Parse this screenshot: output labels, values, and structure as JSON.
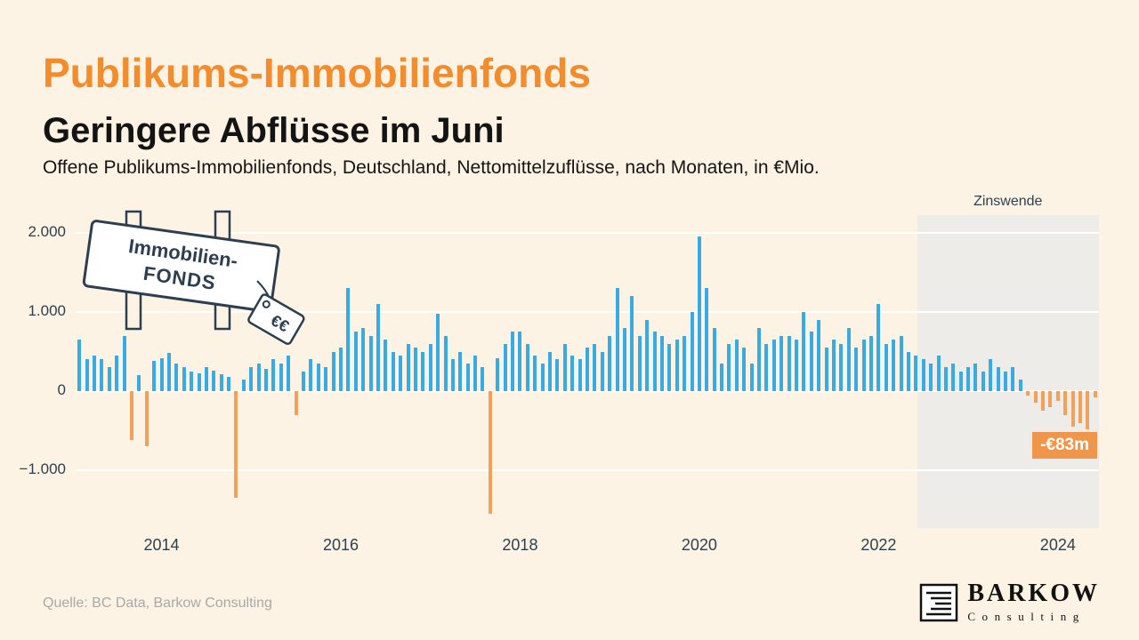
{
  "header": {
    "title": "Publikums-Immobilienfonds",
    "subtitle": "Geringere Abflüsse im Juni",
    "description": "Offene Publikums-Immobilienfonds, Deutschland, Nettomittelzuflüsse, nach Monaten, in €Mio."
  },
  "sign": {
    "line1": "Immobilien-",
    "line2": "FONDS",
    "tag": "€€"
  },
  "footer": {
    "source": "Quelle: BC Data, Barkow Consulting",
    "logo_name": "BARKOW",
    "logo_sub": "Consulting"
  },
  "colors": {
    "background": "#FCF3E5",
    "title_orange": "#F28C2D",
    "bar_positive": "#38ABE2",
    "bar_negative": "#F0A25C",
    "badge": "#F0964B",
    "highlight_region": "#EDECE9",
    "axis_text": "#2E3F50"
  },
  "chart_data": {
    "type": "bar",
    "title": "Offene Publikums-Immobilienfonds, Deutschland, Nettomittelzuflüsse, nach Monaten, in €Mio.",
    "unit": "€Mio.",
    "frequency": "monthly",
    "ylim": [
      -1600,
      2100
    ],
    "grid": true,
    "yticks": [
      {
        "value": 2000,
        "label": "2.000"
      },
      {
        "value": 1000,
        "label": "1.000"
      },
      {
        "value": 0,
        "label": "0"
      },
      {
        "value": -1000,
        "label": "−1.000"
      }
    ],
    "xticks": [
      "2014",
      "2016",
      "2018",
      "2020",
      "2022",
      "2024"
    ],
    "positive_color": "#38ABE2",
    "negative_color": "#F0A25C",
    "highlight_region": {
      "label": "Zinswende",
      "start": "2022-07",
      "end": "2024-06"
    },
    "last_value_label": "-€83m",
    "series": [
      [
        "2013-02",
        650
      ],
      [
        "2013-03",
        400
      ],
      [
        "2013-04",
        450
      ],
      [
        "2013-05",
        400
      ],
      [
        "2013-06",
        300
      ],
      [
        "2013-07",
        450
      ],
      [
        "2013-08",
        700
      ],
      [
        "2013-09",
        -620
      ],
      [
        "2013-10",
        200
      ],
      [
        "2013-11",
        -700
      ],
      [
        "2013-12",
        380
      ],
      [
        "2014-01",
        420
      ],
      [
        "2014-02",
        480
      ],
      [
        "2014-03",
        350
      ],
      [
        "2014-04",
        300
      ],
      [
        "2014-05",
        250
      ],
      [
        "2014-06",
        220
      ],
      [
        "2014-07",
        300
      ],
      [
        "2014-08",
        260
      ],
      [
        "2014-09",
        210
      ],
      [
        "2014-10",
        180
      ],
      [
        "2014-11",
        -1350
      ],
      [
        "2014-12",
        150
      ],
      [
        "2015-01",
        300
      ],
      [
        "2015-02",
        350
      ],
      [
        "2015-03",
        280
      ],
      [
        "2015-04",
        400
      ],
      [
        "2015-05",
        350
      ],
      [
        "2015-06",
        450
      ],
      [
        "2015-07",
        -300
      ],
      [
        "2015-08",
        250
      ],
      [
        "2015-09",
        400
      ],
      [
        "2015-10",
        350
      ],
      [
        "2015-11",
        300
      ],
      [
        "2015-12",
        500
      ],
      [
        "2016-01",
        550
      ],
      [
        "2016-02",
        1300
      ],
      [
        "2016-03",
        750
      ],
      [
        "2016-04",
        800
      ],
      [
        "2016-05",
        700
      ],
      [
        "2016-06",
        1100
      ],
      [
        "2016-07",
        650
      ],
      [
        "2016-08",
        500
      ],
      [
        "2016-09",
        450
      ],
      [
        "2016-10",
        600
      ],
      [
        "2016-11",
        550
      ],
      [
        "2016-12",
        500
      ],
      [
        "2017-01",
        600
      ],
      [
        "2017-02",
        980
      ],
      [
        "2017-03",
        700
      ],
      [
        "2017-04",
        400
      ],
      [
        "2017-05",
        500
      ],
      [
        "2017-06",
        350
      ],
      [
        "2017-07",
        450
      ],
      [
        "2017-08",
        300
      ],
      [
        "2017-09",
        -1550
      ],
      [
        "2017-10",
        420
      ],
      [
        "2017-11",
        600
      ],
      [
        "2017-12",
        750
      ],
      [
        "2018-01",
        750
      ],
      [
        "2018-02",
        600
      ],
      [
        "2018-03",
        450
      ],
      [
        "2018-04",
        350
      ],
      [
        "2018-05",
        500
      ],
      [
        "2018-06",
        400
      ],
      [
        "2018-07",
        600
      ],
      [
        "2018-08",
        450
      ],
      [
        "2018-09",
        400
      ],
      [
        "2018-10",
        550
      ],
      [
        "2018-11",
        600
      ],
      [
        "2018-12",
        500
      ],
      [
        "2019-01",
        700
      ],
      [
        "2019-02",
        1300
      ],
      [
        "2019-03",
        800
      ],
      [
        "2019-04",
        1200
      ],
      [
        "2019-05",
        700
      ],
      [
        "2019-06",
        900
      ],
      [
        "2019-07",
        750
      ],
      [
        "2019-08",
        700
      ],
      [
        "2019-09",
        600
      ],
      [
        "2019-10",
        650
      ],
      [
        "2019-11",
        700
      ],
      [
        "2019-12",
        1000
      ],
      [
        "2020-01",
        1950
      ],
      [
        "2020-02",
        1300
      ],
      [
        "2020-03",
        800
      ],
      [
        "2020-04",
        350
      ],
      [
        "2020-05",
        600
      ],
      [
        "2020-06",
        650
      ],
      [
        "2020-07",
        550
      ],
      [
        "2020-08",
        350
      ],
      [
        "2020-09",
        800
      ],
      [
        "2020-10",
        600
      ],
      [
        "2020-11",
        650
      ],
      [
        "2020-12",
        700
      ],
      [
        "2021-01",
        700
      ],
      [
        "2021-02",
        650
      ],
      [
        "2021-03",
        1000
      ],
      [
        "2021-04",
        750
      ],
      [
        "2021-05",
        900
      ],
      [
        "2021-06",
        550
      ],
      [
        "2021-07",
        650
      ],
      [
        "2021-08",
        600
      ],
      [
        "2021-09",
        800
      ],
      [
        "2021-10",
        550
      ],
      [
        "2021-11",
        650
      ],
      [
        "2021-12",
        700
      ],
      [
        "2022-01",
        1100
      ],
      [
        "2022-02",
        600
      ],
      [
        "2022-03",
        650
      ],
      [
        "2022-04",
        700
      ],
      [
        "2022-05",
        500
      ],
      [
        "2022-06",
        450
      ],
      [
        "2022-07",
        400
      ],
      [
        "2022-08",
        350
      ],
      [
        "2022-09",
        450
      ],
      [
        "2022-10",
        300
      ],
      [
        "2022-11",
        350
      ],
      [
        "2022-12",
        250
      ],
      [
        "2023-01",
        300
      ],
      [
        "2023-02",
        350
      ],
      [
        "2023-03",
        250
      ],
      [
        "2023-04",
        400
      ],
      [
        "2023-05",
        300
      ],
      [
        "2023-06",
        250
      ],
      [
        "2023-07",
        300
      ],
      [
        "2023-08",
        150
      ],
      [
        "2023-09",
        -60
      ],
      [
        "2023-10",
        -150
      ],
      [
        "2023-11",
        -250
      ],
      [
        "2023-12",
        -200
      ],
      [
        "2024-01",
        -120
      ],
      [
        "2024-02",
        -300
      ],
      [
        "2024-03",
        -450
      ],
      [
        "2024-04",
        -400
      ],
      [
        "2024-05",
        -480
      ],
      [
        "2024-06",
        -83
      ]
    ]
  }
}
